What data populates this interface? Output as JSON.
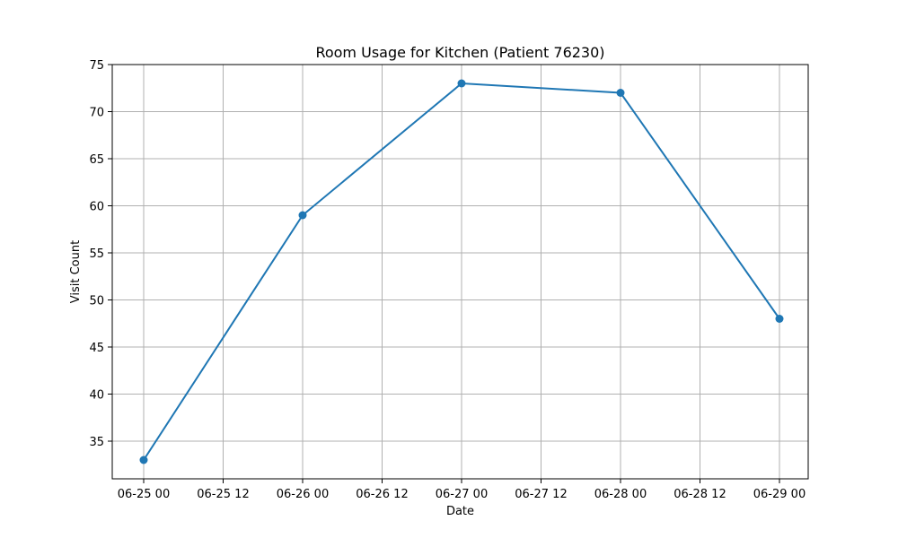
{
  "chart_data": {
    "type": "line",
    "title": "Room Usage for Kitchen (Patient 76230)",
    "xlabel": "Date",
    "ylabel": "Visit Count",
    "x": [
      "06-25 00",
      "06-26 00",
      "06-27 00",
      "06-28 00",
      "06-29 00"
    ],
    "x_ticks": [
      "06-25 00",
      "06-25 12",
      "06-26 00",
      "06-26 12",
      "06-27 00",
      "06-27 12",
      "06-28 00",
      "06-28 12",
      "06-29 00"
    ],
    "y_ticks": [
      35,
      40,
      45,
      50,
      55,
      60,
      65,
      70,
      75
    ],
    "ylim": [
      31,
      75
    ],
    "series": [
      {
        "values": [
          33,
          59,
          73,
          72,
          48
        ]
      }
    ],
    "grid": true,
    "line_color": "#1f77b4"
  }
}
